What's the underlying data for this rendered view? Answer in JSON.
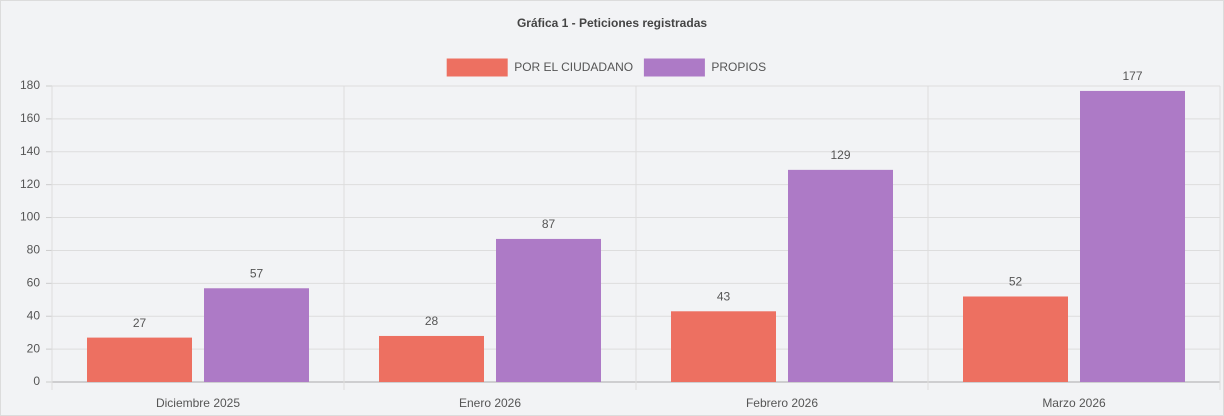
{
  "chart_data": {
    "type": "bar",
    "title": "Gráfica 1 - Peticiones registradas",
    "categories": [
      "Diciembre 2025",
      "Enero 2026",
      "Febrero 2026",
      "Marzo 2026"
    ],
    "series": [
      {
        "name": "POR EL CIUDADANO",
        "color": "#ed7061",
        "values": [
          27,
          28,
          43,
          52
        ]
      },
      {
        "name": "PROPIOS",
        "color": "#ad7ac6",
        "values": [
          57,
          87,
          129,
          177
        ]
      }
    ],
    "ylim": [
      0,
      180
    ],
    "yticks": [
      0,
      20,
      40,
      60,
      80,
      100,
      120,
      140,
      160,
      180
    ],
    "grid": true,
    "legend": "top"
  }
}
